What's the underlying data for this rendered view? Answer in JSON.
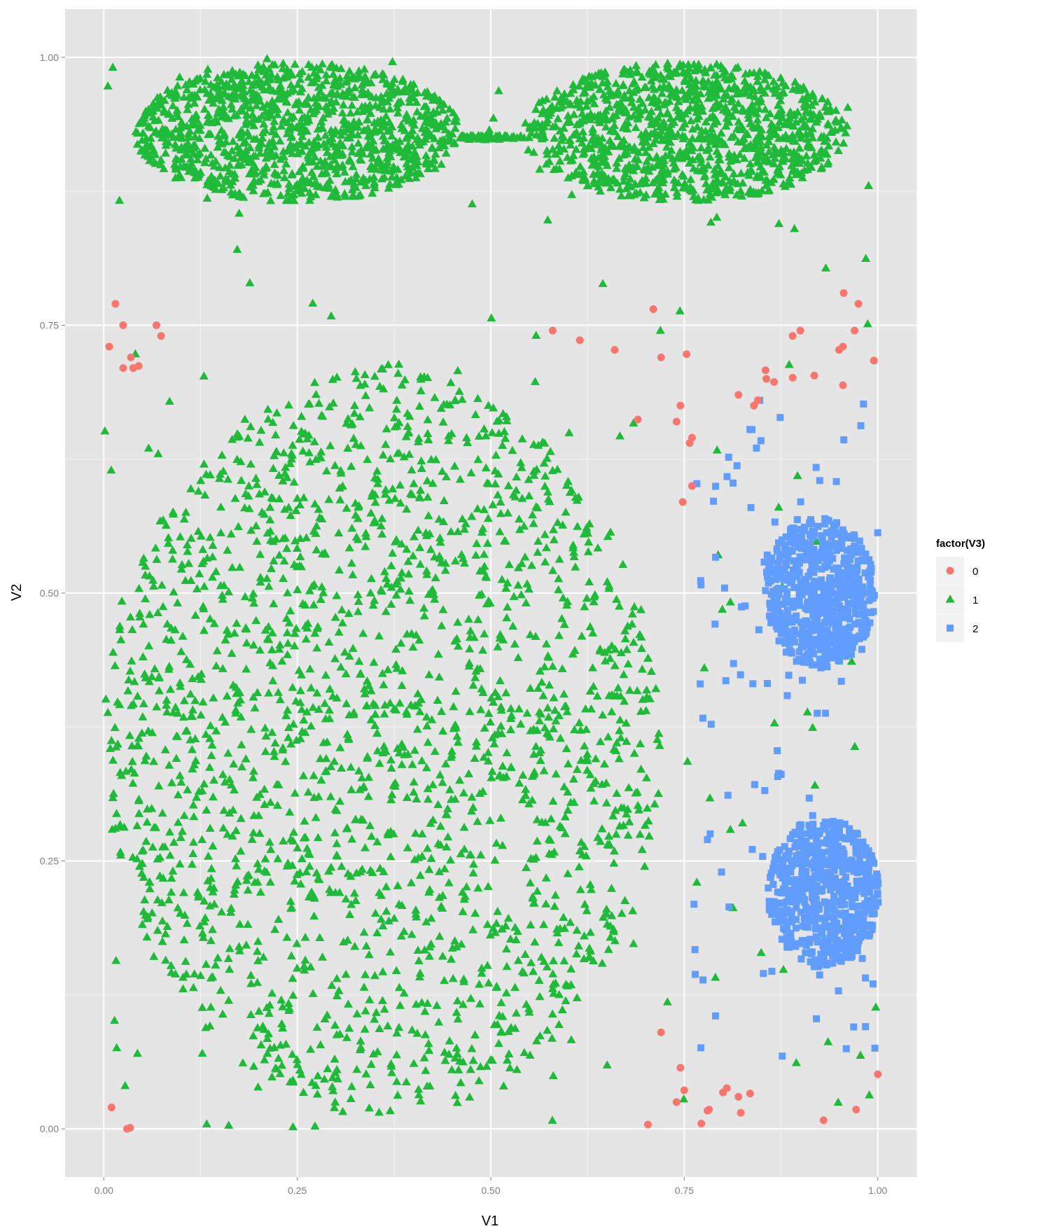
{
  "chart_data": {
    "type": "scatter",
    "title": "",
    "xlabel": "V1",
    "ylabel": "V2",
    "xlim": [
      -0.05,
      1.05
    ],
    "ylim": [
      -0.045,
      1.045
    ],
    "x_ticks": [
      0.0,
      0.25,
      0.5,
      0.75,
      1.0
    ],
    "x_tick_labels": [
      "0.00",
      "0.25",
      "0.50",
      "0.75",
      "1.00"
    ],
    "y_ticks": [
      0.0,
      0.25,
      0.5,
      0.75,
      1.0
    ],
    "y_tick_labels": [
      "0.00",
      "0.25",
      "0.50",
      "0.75",
      "1.00"
    ],
    "grid": true,
    "background": "#e5e5e5",
    "legend": {
      "title": "factor(V3)",
      "position": "right",
      "entries": [
        {
          "label": "0",
          "shape": "circle",
          "color": "#f8766d"
        },
        {
          "label": "1",
          "shape": "triangle",
          "color": "#1fba39"
        },
        {
          "label": "2",
          "shape": "square",
          "color": "#619cff"
        }
      ]
    },
    "series": [
      {
        "name": "0",
        "shape": "circle",
        "color": "#f8766d",
        "points": [
          [
            0.015,
            0.77
          ],
          [
            0.025,
            0.75
          ],
          [
            0.007,
            0.73
          ],
          [
            0.035,
            0.72
          ],
          [
            0.025,
            0.71
          ],
          [
            0.038,
            0.71
          ],
          [
            0.045,
            0.712
          ],
          [
            0.068,
            0.75
          ],
          [
            0.074,
            0.74
          ],
          [
            0.58,
            0.745
          ],
          [
            0.615,
            0.736
          ],
          [
            0.66,
            0.727
          ],
          [
            0.71,
            0.765
          ],
          [
            0.72,
            0.72
          ],
          [
            0.753,
            0.723
          ],
          [
            0.745,
            0.675
          ],
          [
            0.74,
            0.66
          ],
          [
            0.76,
            0.645
          ],
          [
            0.757,
            0.64
          ],
          [
            0.76,
            0.6
          ],
          [
            0.748,
            0.585
          ],
          [
            0.69,
            0.662
          ],
          [
            0.82,
            0.685
          ],
          [
            0.84,
            0.675
          ],
          [
            0.845,
            0.68
          ],
          [
            0.855,
            0.708
          ],
          [
            0.856,
            0.7
          ],
          [
            0.866,
            0.697
          ],
          [
            0.89,
            0.701
          ],
          [
            0.918,
            0.703
          ],
          [
            0.9,
            0.745
          ],
          [
            0.89,
            0.74
          ],
          [
            0.95,
            0.727
          ],
          [
            0.955,
            0.73
          ],
          [
            0.97,
            0.745
          ],
          [
            0.955,
            0.694
          ],
          [
            0.956,
            0.78
          ],
          [
            0.975,
            0.77
          ],
          [
            0.995,
            0.717
          ],
          [
            0.01,
            0.02
          ],
          [
            0.03,
            0.0
          ],
          [
            0.034,
            0.001
          ],
          [
            0.72,
            0.09
          ],
          [
            0.745,
            0.057
          ],
          [
            0.74,
            0.025
          ],
          [
            0.75,
            0.036
          ],
          [
            0.772,
            0.005
          ],
          [
            0.78,
            0.017
          ],
          [
            0.782,
            0.018
          ],
          [
            0.8,
            0.034
          ],
          [
            0.805,
            0.038
          ],
          [
            0.82,
            0.03
          ],
          [
            0.835,
            0.033
          ],
          [
            0.823,
            0.015
          ],
          [
            0.703,
            0.004
          ],
          [
            0.93,
            0.008
          ],
          [
            0.972,
            0.018
          ],
          [
            1.0,
            0.051
          ]
        ]
      },
      {
        "name": "1",
        "shape": "triangle",
        "clusters": [
          {
            "kind": "ellipse",
            "cx": 0.25,
            "cy": 0.93,
            "rx": 0.21,
            "ry": 0.065,
            "count": 1100
          },
          {
            "kind": "ellipse",
            "cx": 0.75,
            "cy": 0.93,
            "rx": 0.21,
            "ry": 0.065,
            "count": 1100
          },
          {
            "kind": "bridge",
            "x0": 0.46,
            "x1": 0.54,
            "y": 0.925,
            "count": 60
          },
          {
            "kind": "disc",
            "cx": 0.36,
            "cy": 0.36,
            "rx": 0.36,
            "ry": 0.35,
            "count": 1900
          },
          {
            "kind": "uniform",
            "x0": 0.0,
            "x1": 1.0,
            "y0": 0.0,
            "y1": 1.0,
            "count": 210
          }
        ],
        "color": "#1fba39"
      },
      {
        "name": "2",
        "shape": "square",
        "clusters": [
          {
            "kind": "ellipse",
            "cx": 0.925,
            "cy": 0.5,
            "rx": 0.072,
            "ry": 0.07,
            "count": 620
          },
          {
            "kind": "ellipse",
            "cx": 0.93,
            "cy": 0.22,
            "rx": 0.072,
            "ry": 0.07,
            "count": 620
          },
          {
            "kind": "uniform",
            "x0": 0.76,
            "x1": 1.0,
            "y0": 0.05,
            "y1": 0.68,
            "count": 110
          }
        ],
        "color": "#619cff"
      }
    ]
  }
}
